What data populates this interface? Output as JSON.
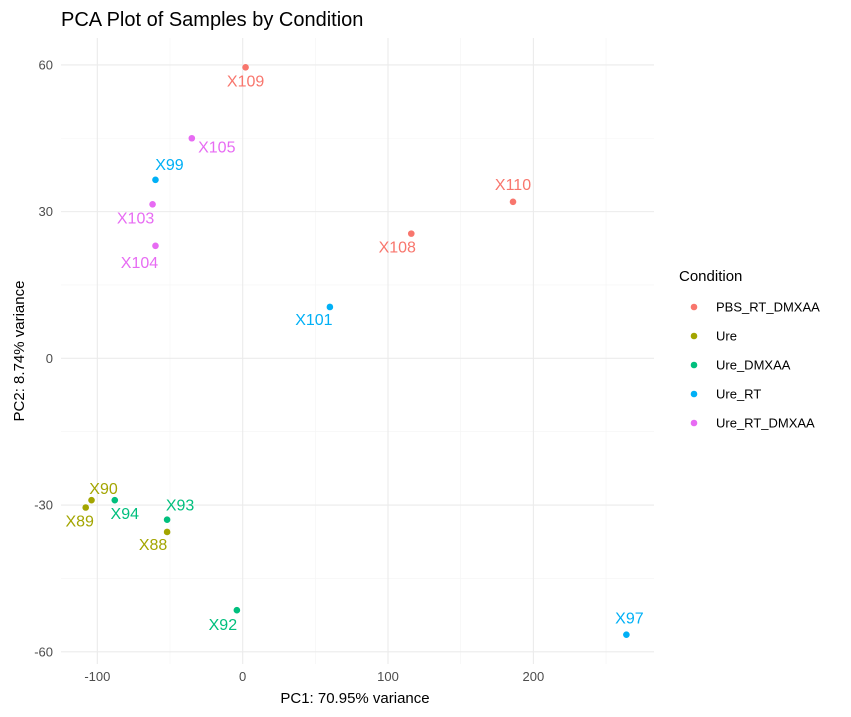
{
  "chart_data": {
    "type": "scatter",
    "title": "PCA Plot of Samples by Condition",
    "xlabel": "PC1: 70.95% variance",
    "ylabel": "PC2: 8.74% variance",
    "xlim": [
      -125,
      283
    ],
    "ylim": [
      -62.5,
      65.5
    ],
    "x_ticks": [
      -100,
      0,
      100,
      200
    ],
    "x_tick_labels": [
      "-100",
      "0",
      "100",
      "200"
    ],
    "y_ticks": [
      -60,
      -30,
      0,
      30,
      60
    ],
    "y_tick_labels": [
      "-60",
      "-30",
      "0",
      "30",
      "60"
    ],
    "grid": true,
    "legend": {
      "title": "Condition",
      "position": "right",
      "entries": [
        "PBS_RT_DMXAA",
        "Ure",
        "Ure_DMXAA",
        "Ure_RT",
        "Ure_RT_DMXAA"
      ]
    },
    "colors": {
      "PBS_RT_DMXAA": "#F8766D",
      "Ure": "#A3A500",
      "Ure_DMXAA": "#00BF7D",
      "Ure_RT": "#00B0F6",
      "Ure_RT_DMXAA": "#E76BF3"
    },
    "series": [
      {
        "name": "PBS_RT_DMXAA",
        "points": [
          {
            "label": "X109",
            "x": 2,
            "y": 59.5
          },
          {
            "label": "X110",
            "x": 186,
            "y": 32
          },
          {
            "label": "X108",
            "x": 116,
            "y": 25.5
          }
        ]
      },
      {
        "name": "Ure",
        "points": [
          {
            "label": "X90",
            "x": -104,
            "y": -29
          },
          {
            "label": "X89",
            "x": -108,
            "y": -30.5
          },
          {
            "label": "X88",
            "x": -52,
            "y": -35.5
          }
        ]
      },
      {
        "name": "Ure_DMXAA",
        "points": [
          {
            "label": "X94",
            "x": -88,
            "y": -29
          },
          {
            "label": "X93",
            "x": -52,
            "y": -33
          },
          {
            "label": "X92",
            "x": -4,
            "y": -51.5
          }
        ]
      },
      {
        "name": "Ure_RT",
        "points": [
          {
            "label": "X99",
            "x": -60,
            "y": 36.5
          },
          {
            "label": "X101",
            "x": 60,
            "y": 10.5
          },
          {
            "label": "X97",
            "x": 264,
            "y": -56.5
          }
        ]
      },
      {
        "name": "Ure_RT_DMXAA",
        "points": [
          {
            "label": "X105",
            "x": -35,
            "y": 45
          },
          {
            "label": "X103",
            "x": -62,
            "y": 31.5
          },
          {
            "label": "X104",
            "x": -60,
            "y": 23
          }
        ]
      }
    ]
  }
}
